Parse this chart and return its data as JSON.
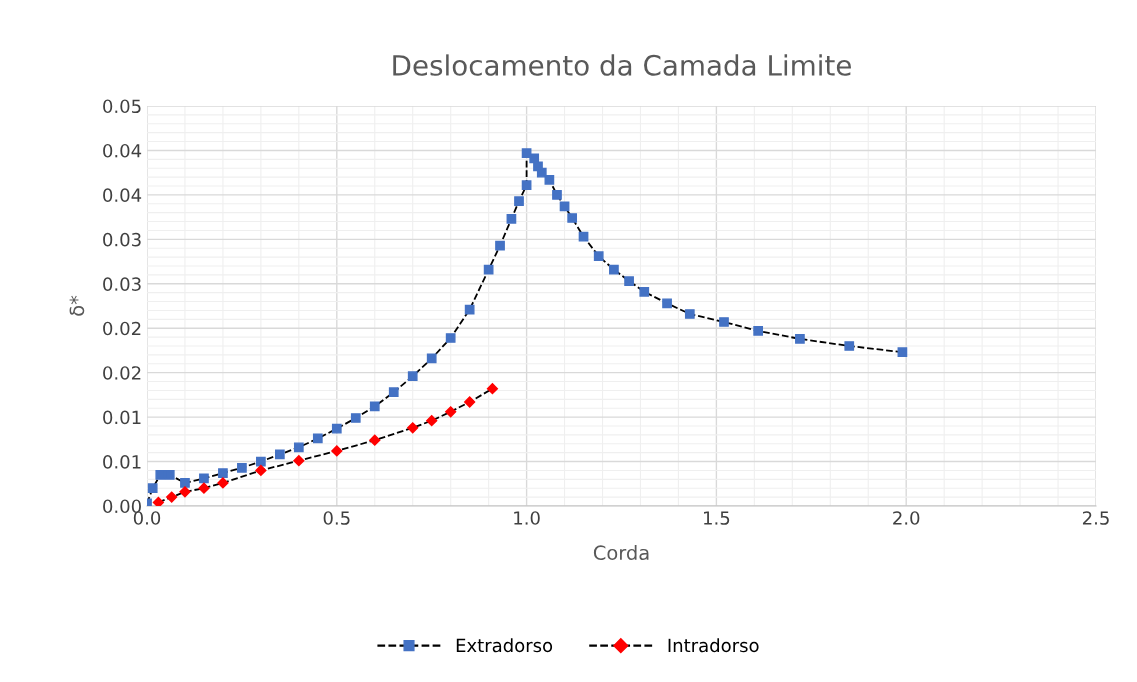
{
  "chart_data": {
    "type": "line",
    "title": "Deslocamento da Camada Limite",
    "xlabel": "Corda",
    "ylabel": "δ*",
    "xlim": [
      0,
      2.5
    ],
    "xticks": [
      {
        "value": 0,
        "label": "0.0"
      },
      {
        "value": 0.5,
        "label": "0.5"
      },
      {
        "value": 1,
        "label": "1.0"
      },
      {
        "value": 1.5,
        "label": "1.5"
      },
      {
        "value": 2,
        "label": "2.0"
      },
      {
        "value": 2.5,
        "label": "2.5"
      }
    ],
    "ylim": [
      0,
      0.045
    ],
    "yticks": [
      {
        "value": 0,
        "label": "0.00"
      },
      {
        "value": 0.005,
        "label": "0.01"
      },
      {
        "value": 0.01,
        "label": "0.01"
      },
      {
        "value": 0.015,
        "label": "0.02"
      },
      {
        "value": 0.02,
        "label": "0.02"
      },
      {
        "value": 0.025,
        "label": "0.03"
      },
      {
        "value": 0.03,
        "label": "0.03"
      },
      {
        "value": 0.035,
        "label": "0.04"
      },
      {
        "value": 0.04,
        "label": "0.04"
      },
      {
        "value": 0.045,
        "label": "0.05"
      }
    ],
    "grid": true,
    "legend": "bottom",
    "line_style": "dashed",
    "series": [
      {
        "name": "Extradorso",
        "color": "#4472c4",
        "marker": "square",
        "x": [
          0,
          0.015,
          0.035,
          0.06,
          0.1,
          0.15,
          0.2,
          0.25,
          0.3,
          0.35,
          0.4,
          0.45,
          0.5,
          0.55,
          0.6,
          0.65,
          0.7,
          0.75,
          0.8,
          0.85,
          0.9,
          0.93,
          0.96,
          0.98,
          1.0,
          1.0,
          1.02,
          1.03,
          1.04,
          1.06,
          1.08,
          1.1,
          1.12,
          1.15,
          1.19,
          1.23,
          1.27,
          1.31,
          1.37,
          1.43,
          1.52,
          1.61,
          1.72,
          1.85,
          1.99
        ],
        "values": [
          0.0003,
          0.002,
          0.0035,
          0.0035,
          0.0026,
          0.0031,
          0.0037,
          0.0043,
          0.005,
          0.0058,
          0.0066,
          0.0076,
          0.0087,
          0.0099,
          0.0112,
          0.0128,
          0.0146,
          0.0166,
          0.0189,
          0.0221,
          0.0266,
          0.0293,
          0.0323,
          0.0343,
          0.0361,
          0.0397,
          0.0391,
          0.0382,
          0.0375,
          0.0367,
          0.035,
          0.0337,
          0.0324,
          0.0303,
          0.0281,
          0.0266,
          0.0253,
          0.0241,
          0.0228,
          0.0216,
          0.0207,
          0.0197,
          0.0188,
          0.018,
          0.0173
        ]
      },
      {
        "name": "Intradorso",
        "color": "#ff0000",
        "marker": "diamond",
        "x": [
          0.03,
          0.065,
          0.1,
          0.15,
          0.2,
          0.3,
          0.4,
          0.5,
          0.6,
          0.7,
          0.75,
          0.8,
          0.85,
          0.91
        ],
        "values": [
          0.0004,
          0.001,
          0.0016,
          0.002,
          0.0026,
          0.004,
          0.0051,
          0.0062,
          0.0074,
          0.0088,
          0.0096,
          0.0106,
          0.0117,
          0.0132
        ]
      }
    ]
  }
}
